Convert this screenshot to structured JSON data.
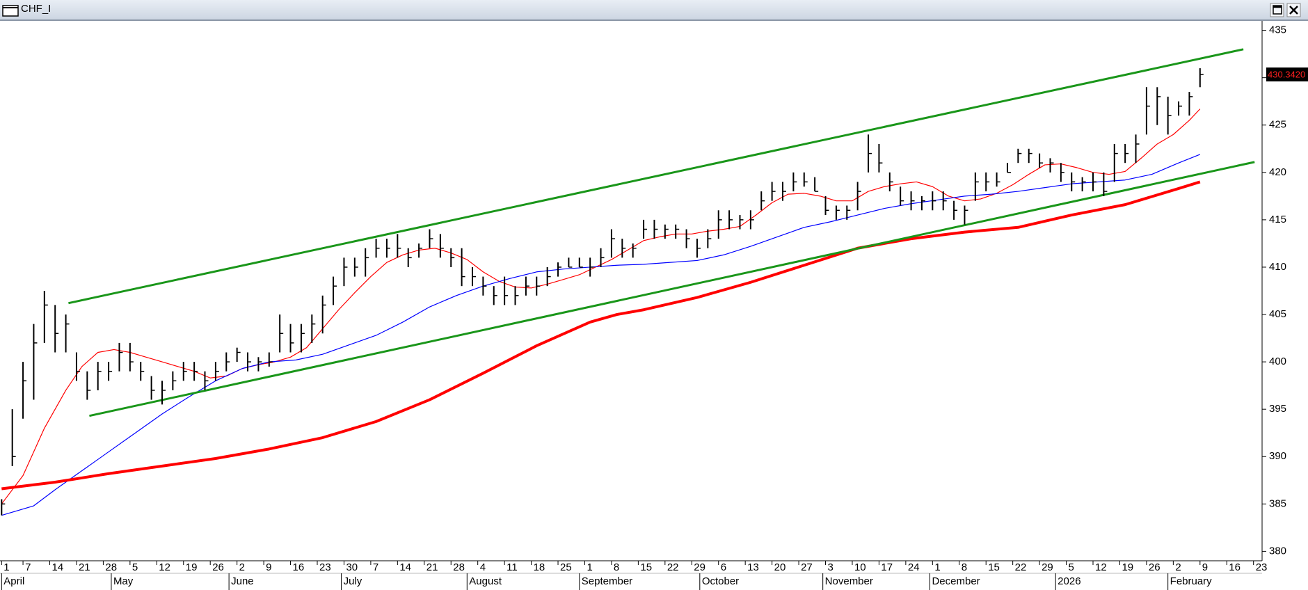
{
  "window": {
    "title": "CHF_I"
  },
  "chart_data": {
    "type": "ohlc",
    "xlim": [
      -0.3,
      235.6
    ],
    "ylim": [
      379,
      436
    ],
    "yticks": [
      380,
      385,
      390,
      395,
      400,
      405,
      410,
      415,
      420,
      425,
      430,
      435
    ],
    "xticks": [
      {
        "value": 0,
        "label": "1"
      },
      {
        "value": 4,
        "label": "7"
      },
      {
        "value": 9,
        "label": "14"
      },
      {
        "value": 14,
        "label": "21"
      },
      {
        "value": 19,
        "label": "28"
      },
      {
        "value": 24,
        "label": "5"
      },
      {
        "value": 29,
        "label": "12"
      },
      {
        "value": 34,
        "label": "19"
      },
      {
        "value": 39,
        "label": "26"
      },
      {
        "value": 44,
        "label": "2"
      },
      {
        "value": 49,
        "label": "9"
      },
      {
        "value": 54,
        "label": "16"
      },
      {
        "value": 59,
        "label": "23"
      },
      {
        "value": 64,
        "label": "30"
      },
      {
        "value": 69,
        "label": "7"
      },
      {
        "value": 74,
        "label": "14"
      },
      {
        "value": 79,
        "label": "21"
      },
      {
        "value": 84,
        "label": "28"
      },
      {
        "value": 89,
        "label": "4"
      },
      {
        "value": 94,
        "label": "11"
      },
      {
        "value": 99,
        "label": "18"
      },
      {
        "value": 104,
        "label": "25"
      },
      {
        "value": 109,
        "label": "1"
      },
      {
        "value": 114,
        "label": "8"
      },
      {
        "value": 119,
        "label": "15"
      },
      {
        "value": 124,
        "label": "22"
      },
      {
        "value": 129,
        "label": "29"
      },
      {
        "value": 134,
        "label": "6"
      },
      {
        "value": 139,
        "label": "13"
      },
      {
        "value": 144,
        "label": "20"
      },
      {
        "value": 149,
        "label": "27"
      },
      {
        "value": 154,
        "label": "3"
      },
      {
        "value": 159,
        "label": "10"
      },
      {
        "value": 164,
        "label": "17"
      },
      {
        "value": 169,
        "label": "24"
      },
      {
        "value": 174,
        "label": "1"
      },
      {
        "value": 179,
        "label": "8"
      },
      {
        "value": 184,
        "label": "15"
      },
      {
        "value": 189,
        "label": "22"
      },
      {
        "value": 194,
        "label": "29"
      },
      {
        "value": 199,
        "label": "5"
      },
      {
        "value": 204,
        "label": "12"
      },
      {
        "value": 209,
        "label": "19"
      },
      {
        "value": 214,
        "label": "26"
      },
      {
        "value": 219,
        "label": "2"
      },
      {
        "value": 224,
        "label": "9"
      },
      {
        "value": 229,
        "label": "16"
      },
      {
        "value": 234,
        "label": "23"
      }
    ],
    "month_ticks": [
      {
        "value": 0,
        "label": "April"
      },
      {
        "value": 20.5,
        "label": "May"
      },
      {
        "value": 42.5,
        "label": "June"
      },
      {
        "value": 63.5,
        "label": "July"
      },
      {
        "value": 87,
        "label": "August"
      },
      {
        "value": 108,
        "label": "September"
      },
      {
        "value": 130.5,
        "label": "October"
      },
      {
        "value": 153.5,
        "label": "November"
      },
      {
        "value": 173.5,
        "label": "December"
      },
      {
        "value": 197,
        "label": "2026"
      },
      {
        "value": 218,
        "label": "February"
      }
    ],
    "bars": {
      "color": "#000000",
      "x": [
        0,
        2,
        4,
        6,
        8,
        10,
        12,
        14,
        16,
        18,
        20,
        22,
        24,
        26,
        28,
        30,
        32,
        34,
        36,
        38,
        40,
        42,
        44,
        46,
        48,
        50,
        52,
        54,
        56,
        58,
        60,
        62,
        64,
        66,
        68,
        70,
        72,
        74,
        76,
        78,
        80,
        82,
        84,
        86,
        88,
        90,
        92,
        94,
        96,
        98,
        100,
        102,
        104,
        106,
        108,
        110,
        112,
        114,
        116,
        118,
        120,
        122,
        124,
        126,
        128,
        130,
        132,
        134,
        136,
        138,
        140,
        142,
        144,
        146,
        148,
        150,
        152,
        154,
        156,
        158,
        160,
        162,
        164,
        166,
        168,
        170,
        172,
        174,
        176,
        178,
        180,
        182,
        184,
        186,
        188,
        190,
        192,
        194,
        196,
        198,
        200,
        202,
        204,
        206,
        208,
        210,
        212,
        214,
        216,
        218,
        220,
        222,
        224
      ],
      "high": [
        385.5,
        395,
        400,
        404,
        407.5,
        406,
        405,
        401,
        399,
        400,
        400,
        402,
        402,
        400,
        398.5,
        398,
        399,
        400,
        400,
        399,
        400,
        401,
        401.5,
        401,
        400.5,
        401,
        405,
        404,
        404,
        405,
        407,
        409,
        411,
        411,
        412,
        413,
        413,
        413.5,
        412,
        412.5,
        414,
        413.5,
        412,
        412,
        410,
        409,
        408,
        409,
        408,
        409,
        409,
        410,
        410.5,
        411,
        411,
        411,
        412,
        414,
        413,
        412.5,
        415,
        415,
        414.5,
        414.5,
        414,
        413,
        414,
        416,
        416,
        415.5,
        416,
        418,
        419,
        419,
        420,
        420,
        419.5,
        417.5,
        416.5,
        416.5,
        419,
        424,
        423,
        420,
        418.5,
        418,
        417.5,
        418,
        418,
        417,
        416.5,
        420,
        420,
        420,
        421,
        422.5,
        422.5,
        422,
        421.5,
        421,
        420,
        419.5,
        420,
        420,
        423,
        423,
        424,
        429,
        429,
        428,
        427.5,
        428.5,
        431
      ],
      "low": [
        383.8,
        389,
        394,
        396,
        402,
        401,
        401,
        398,
        396,
        397,
        398,
        399,
        399,
        398,
        396,
        395.5,
        397,
        398,
        398,
        397,
        398,
        399,
        400,
        399,
        399,
        399.5,
        401,
        401,
        401,
        402,
        403,
        406,
        408,
        409,
        409,
        411,
        411,
        411,
        410,
        411,
        412,
        411,
        410,
        408,
        408,
        407,
        406,
        406,
        406,
        407,
        407,
        408,
        409,
        410,
        410,
        409,
        410,
        411,
        411,
        411,
        413,
        413,
        413,
        413,
        412,
        411,
        412,
        413,
        414,
        414,
        414,
        416,
        417,
        417,
        418,
        418.5,
        418,
        415.5,
        415,
        415,
        416,
        420,
        420,
        418,
        416.5,
        416,
        416,
        416,
        416,
        415,
        414.5,
        417,
        418,
        418.5,
        420,
        421,
        421,
        420.5,
        420,
        419,
        418,
        418,
        418,
        417.5,
        419,
        421,
        421,
        424,
        425,
        424,
        426,
        426,
        429
      ],
      "close": [
        385,
        390,
        398,
        402,
        406,
        403,
        404,
        399,
        397,
        399,
        399,
        401,
        400,
        399,
        397,
        397,
        398,
        399,
        399,
        398,
        399,
        400,
        401,
        400,
        400,
        400,
        403,
        402,
        403,
        404,
        406,
        408,
        410,
        410,
        411,
        412,
        412,
        412,
        411,
        412,
        413,
        412,
        411,
        409,
        409,
        408,
        407,
        407,
        407,
        408,
        408,
        409,
        410,
        410,
        410,
        410,
        411,
        413,
        412,
        412,
        414,
        414,
        414,
        414,
        413,
        412,
        413,
        415,
        415,
        415,
        415,
        417,
        418,
        418,
        419,
        419,
        418,
        416,
        416,
        416,
        418,
        422,
        421,
        419,
        417,
        417,
        417,
        417,
        417,
        416,
        416,
        419,
        419,
        419,
        420,
        422,
        422,
        421,
        421,
        420,
        419,
        419,
        419,
        418,
        422,
        422,
        423,
        427,
        428,
        426,
        427,
        428,
        430.342
      ]
    },
    "last_value": 430.342,
    "last_value_label": "430.3420",
    "lines": [
      {
        "color": "#ff0000",
        "width": 1.2,
        "x": [
          0,
          4,
          8,
          12,
          15,
          18,
          21,
          24,
          27,
          30,
          33,
          36,
          39,
          42,
          45,
          48,
          51,
          54,
          57,
          60,
          63,
          66,
          69,
          72,
          75,
          78,
          81,
          84,
          87,
          90,
          93,
          96,
          99,
          102,
          105,
          108,
          111,
          114,
          117,
          120,
          123,
          126,
          129,
          132,
          135,
          138,
          141,
          144,
          147,
          150,
          153,
          156,
          159,
          162,
          165,
          168,
          171,
          174,
          177,
          180,
          183,
          186,
          189,
          192,
          195,
          198,
          201,
          204,
          207,
          210,
          213,
          216,
          219,
          222,
          224
        ],
        "values": [
          385,
          388,
          393,
          397,
          399.5,
          401,
          401.3,
          401,
          400.5,
          400,
          399.5,
          399,
          398.3,
          398.5,
          399.3,
          399.7,
          400,
          400.5,
          401.5,
          403.5,
          405.5,
          407.3,
          409,
          410.5,
          411.3,
          411.8,
          412,
          411.5,
          410.8,
          409.5,
          408.5,
          407.9,
          407.8,
          408.2,
          408.7,
          409.2,
          410,
          410.8,
          411.8,
          412.8,
          413.2,
          413.5,
          413.5,
          413.8,
          414,
          414.3,
          415.5,
          416.8,
          417.7,
          417.8,
          417.5,
          417,
          417,
          418,
          418.5,
          418.8,
          419,
          418.5,
          417.5,
          417,
          417.2,
          417.8,
          418.7,
          419.8,
          420.8,
          420.9,
          420.5,
          420,
          419.8,
          420.1,
          421.5,
          423,
          424,
          425.5,
          426.7
        ]
      },
      {
        "color": "#0000ff",
        "width": 1.2,
        "x": [
          0,
          6,
          10,
          15,
          20,
          25,
          30,
          35,
          40,
          45,
          50,
          55,
          60,
          65,
          70,
          75,
          80,
          85,
          90,
          95,
          100,
          105,
          110,
          115,
          120,
          125,
          130,
          135,
          140,
          145,
          150,
          155,
          160,
          165,
          170,
          175,
          180,
          185,
          190,
          195,
          200,
          205,
          210,
          215,
          220,
          224
        ],
        "values": [
          383.8,
          384.8,
          386.5,
          388.5,
          390.5,
          392.5,
          394.5,
          396.3,
          398,
          399.3,
          400,
          400.2,
          400.8,
          401.8,
          402.8,
          404.2,
          405.8,
          407,
          408,
          408.8,
          409.5,
          409.8,
          410,
          410.2,
          410.3,
          410.5,
          410.7,
          411.3,
          412.2,
          413.2,
          414.2,
          414.8,
          415.5,
          416.2,
          416.7,
          417.1,
          417.5,
          417.7,
          418,
          418.4,
          418.8,
          419,
          419.2,
          419.8,
          421,
          421.9
        ]
      },
      {
        "color": "#ff0000",
        "width": 4,
        "x": [
          0,
          10,
          20,
          30,
          40,
          50,
          60,
          70,
          80,
          90,
          100,
          110,
          115,
          120,
          130,
          140,
          150,
          160,
          170,
          180,
          190,
          200,
          210,
          220,
          224
        ],
        "values": [
          386.6,
          387.3,
          388.2,
          389,
          389.8,
          390.8,
          392,
          393.7,
          396,
          398.8,
          401.7,
          404.2,
          405,
          405.5,
          406.8,
          408.4,
          410.2,
          412,
          413,
          413.7,
          414.2,
          415.5,
          416.6,
          418.3,
          419
        ]
      }
    ],
    "trendlines": [
      {
        "color": "#1a961a",
        "x": [
          12.5,
          232.1
        ],
        "values": [
          406.2,
          433
        ]
      },
      {
        "color": "#1a961a",
        "x": [
          16.4,
          234.2
        ],
        "values": [
          394.3,
          421.1
        ]
      }
    ]
  }
}
